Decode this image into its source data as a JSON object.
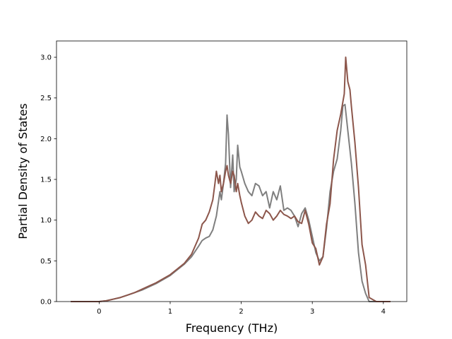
{
  "chart_data": {
    "type": "line",
    "title": "",
    "xlabel": "Frequency (THz)",
    "ylabel": "Partial Density of States",
    "xlim": [
      -0.6,
      4.33
    ],
    "ylim": [
      0.0,
      3.2
    ],
    "xticks": [
      0,
      1,
      2,
      3,
      4
    ],
    "xtick_labels": [
      "0",
      "1",
      "2",
      "3",
      "4"
    ],
    "yticks": [
      0.0,
      0.5,
      1.0,
      1.5,
      2.0,
      2.5,
      3.0
    ],
    "ytick_labels": [
      "0.0",
      "0.5",
      "1.0",
      "1.5",
      "2.0",
      "2.5",
      "3.0"
    ],
    "grid": false,
    "legend": "none",
    "series": [
      {
        "color": "#7f7f7f",
        "x": [
          -0.4,
          -0.2,
          0.0,
          0.1,
          0.2,
          0.3,
          0.4,
          0.5,
          0.6,
          0.7,
          0.8,
          0.9,
          1.0,
          1.1,
          1.2,
          1.3,
          1.4,
          1.45,
          1.5,
          1.55,
          1.6,
          1.65,
          1.7,
          1.72,
          1.75,
          1.78,
          1.8,
          1.82,
          1.85,
          1.88,
          1.9,
          1.93,
          1.95,
          1.98,
          2.0,
          2.05,
          2.1,
          2.15,
          2.2,
          2.25,
          2.3,
          2.35,
          2.4,
          2.45,
          2.5,
          2.55,
          2.6,
          2.65,
          2.7,
          2.75,
          2.8,
          2.85,
          2.9,
          2.95,
          3.0,
          3.05,
          3.1,
          3.15,
          3.2,
          3.25,
          3.3,
          3.35,
          3.4,
          3.43,
          3.46,
          3.5,
          3.55,
          3.6,
          3.65,
          3.7,
          3.75,
          3.8,
          3.9,
          4.1
        ],
        "y": [
          0.0,
          0.0,
          0.0,
          0.01,
          0.03,
          0.05,
          0.08,
          0.11,
          0.14,
          0.18,
          0.22,
          0.27,
          0.32,
          0.39,
          0.46,
          0.55,
          0.68,
          0.75,
          0.78,
          0.8,
          0.88,
          1.05,
          1.35,
          1.25,
          1.45,
          1.7,
          2.29,
          2.05,
          1.4,
          1.8,
          1.35,
          1.5,
          1.92,
          1.65,
          1.6,
          1.45,
          1.35,
          1.3,
          1.45,
          1.42,
          1.3,
          1.35,
          1.15,
          1.35,
          1.25,
          1.42,
          1.12,
          1.15,
          1.12,
          1.05,
          0.92,
          1.08,
          1.15,
          1.0,
          0.8,
          0.6,
          0.5,
          0.55,
          0.9,
          1.35,
          1.6,
          1.75,
          2.1,
          2.4,
          2.42,
          2.1,
          1.7,
          1.2,
          0.6,
          0.25,
          0.1,
          0.0,
          0.0,
          0.0
        ]
      },
      {
        "color": "#8c564b",
        "x": [
          -0.4,
          -0.2,
          0.0,
          0.1,
          0.2,
          0.3,
          0.4,
          0.5,
          0.6,
          0.7,
          0.8,
          0.9,
          1.0,
          1.1,
          1.2,
          1.3,
          1.4,
          1.45,
          1.5,
          1.55,
          1.6,
          1.63,
          1.65,
          1.68,
          1.7,
          1.72,
          1.75,
          1.78,
          1.8,
          1.82,
          1.85,
          1.88,
          1.9,
          1.93,
          1.95,
          1.98,
          2.0,
          2.05,
          2.1,
          2.15,
          2.2,
          2.25,
          2.3,
          2.35,
          2.4,
          2.45,
          2.5,
          2.55,
          2.6,
          2.65,
          2.7,
          2.75,
          2.8,
          2.85,
          2.9,
          2.95,
          3.0,
          3.05,
          3.1,
          3.15,
          3.2,
          3.25,
          3.3,
          3.35,
          3.4,
          3.43,
          3.45,
          3.47,
          3.5,
          3.53,
          3.55,
          3.6,
          3.65,
          3.7,
          3.75,
          3.8,
          3.9,
          4.1
        ],
        "y": [
          0.0,
          0.0,
          0.0,
          0.01,
          0.03,
          0.05,
          0.08,
          0.11,
          0.15,
          0.19,
          0.23,
          0.28,
          0.33,
          0.4,
          0.47,
          0.58,
          0.78,
          0.95,
          1.0,
          1.1,
          1.25,
          1.45,
          1.6,
          1.45,
          1.55,
          1.35,
          1.45,
          1.6,
          1.67,
          1.55,
          1.45,
          1.6,
          1.55,
          1.35,
          1.45,
          1.3,
          1.22,
          1.05,
          0.96,
          1.0,
          1.1,
          1.05,
          1.02,
          1.12,
          1.08,
          1.0,
          1.05,
          1.12,
          1.07,
          1.05,
          1.02,
          1.05,
          0.98,
          0.96,
          1.12,
          0.95,
          0.72,
          0.65,
          0.45,
          0.55,
          0.95,
          1.2,
          1.75,
          2.1,
          2.3,
          2.45,
          2.55,
          3.0,
          2.7,
          2.6,
          2.4,
          1.95,
          1.4,
          0.7,
          0.45,
          0.05,
          0.0,
          0.0
        ]
      }
    ]
  }
}
